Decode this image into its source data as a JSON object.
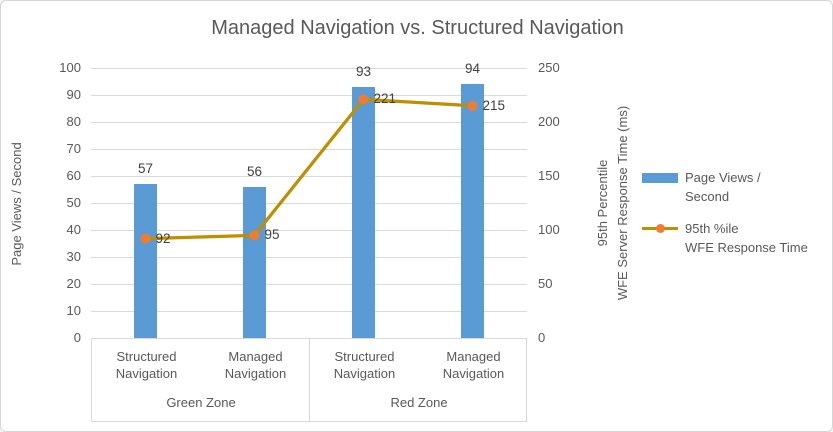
{
  "chart_data": {
    "type": "bar",
    "subtype": "bar-line-combo",
    "title": "Managed Navigation vs. Structured Navigation",
    "categories": [
      "Structured Navigation",
      "Managed Navigation",
      "Structured Navigation",
      "Managed Navigation"
    ],
    "category_groups": [
      "Green Zone",
      "Red Zone"
    ],
    "series": [
      {
        "name": "Page Views / Second",
        "type": "bar",
        "axis": "left",
        "color": "#5B9BD5",
        "values": [
          57,
          56,
          93,
          94
        ],
        "data_labels": [
          "57",
          "56",
          "93",
          "94"
        ]
      },
      {
        "name": "95th %ile WFE Response Time",
        "type": "line",
        "axis": "right",
        "color": "#BF8F00",
        "marker_color": "#ED7D31",
        "values": [
          92,
          95,
          221,
          215
        ],
        "data_labels": [
          "92",
          "95",
          "221",
          "215"
        ]
      }
    ],
    "left_axis": {
      "title": "Page Views / Second",
      "min": 0,
      "max": 100,
      "step": 10,
      "ticks": [
        0,
        10,
        20,
        30,
        40,
        50,
        60,
        70,
        80,
        90,
        100
      ]
    },
    "right_axis": {
      "title_line1": "95th Percentile",
      "title_line2": "WFE Server Response Time (ms)",
      "min": 0,
      "max": 250,
      "step": 50,
      "ticks": [
        0,
        50,
        100,
        150,
        200,
        250
      ]
    },
    "grid": true,
    "legend_position": "right"
  },
  "legend": {
    "items": [
      {
        "swatch": "bar",
        "color": "#5B9BD5",
        "label_line1": "Page Views /",
        "label_line2": "Second"
      },
      {
        "swatch": "line",
        "color": "#BF8F00",
        "marker_color": "#ED7D31",
        "label_line1": "95th %ile",
        "label_line2": "WFE Response Time"
      }
    ]
  },
  "colors": {
    "grid": "#D9D9D9",
    "axis_text": "#595959",
    "data_label_text": "#404040",
    "border": "#D6D6D6",
    "background": "#FFFFFF"
  }
}
